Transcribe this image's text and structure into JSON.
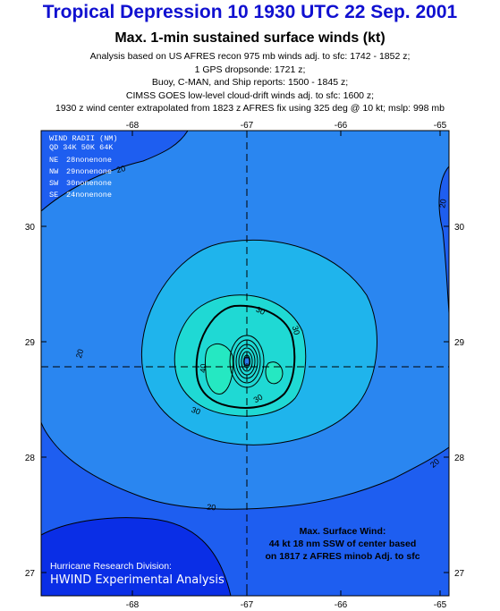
{
  "header": {
    "title": "Tropical Depression 10 1930 UTC 22 Sep. 2001",
    "subtitle": "Max. 1-min sustained surface winds (kt)",
    "info_lines": [
      "Analysis based on US AFRES recon 975 mb winds adj. to sfc: 1742 - 1852 z;",
      "1 GPS dropsonde: 1721 z;",
      "Buoy, C-MAN, and Ship reports: 1500 - 1845 z;",
      "CIMSS GOES low-level cloud-drift winds adj. to sfc: 1600 z;",
      "1930 z wind center extrapolated from 1823 z AFRES fix using 325 deg @ 10 kt; mslp: 998 mb"
    ]
  },
  "map": {
    "lon_ticks": [
      "-68",
      "-67",
      "-66",
      "-65"
    ],
    "lat_ticks": [
      "30",
      "29",
      "28",
      "27"
    ],
    "contour_labels": [
      "20",
      "20",
      "20",
      "20",
      "20",
      "30",
      "30",
      "30",
      "40",
      "30"
    ],
    "colors": {
      "outer": "#1e5ef0",
      "deep": "#0a2ee6",
      "level20": "#2a86f0",
      "level30": "#1fb4ec",
      "level40": "#1fd9d4",
      "core": "#25e8c2",
      "contour": "#000000"
    }
  },
  "wind_radii": {
    "title": "WIND RADII (NM)",
    "header": "QD 34K 50K 64K",
    "rows": [
      {
        "quad": "NE",
        "values": "28nonenone"
      },
      {
        "quad": "NW",
        "values": "29nonenone"
      },
      {
        "quad": "SW",
        "values": "30nonenone"
      },
      {
        "quad": "SE",
        "values": "24nonenone"
      }
    ]
  },
  "max_wind": {
    "line1": "Max. Surface Wind:",
    "line2": "44 kt 18 nm SSW of center based",
    "line3": "on 1817 z AFRES minob Adj. to sfc"
  },
  "credits": {
    "line1": "Hurricane Research Division:",
    "line2": "HWIND Experimental Analysis"
  }
}
